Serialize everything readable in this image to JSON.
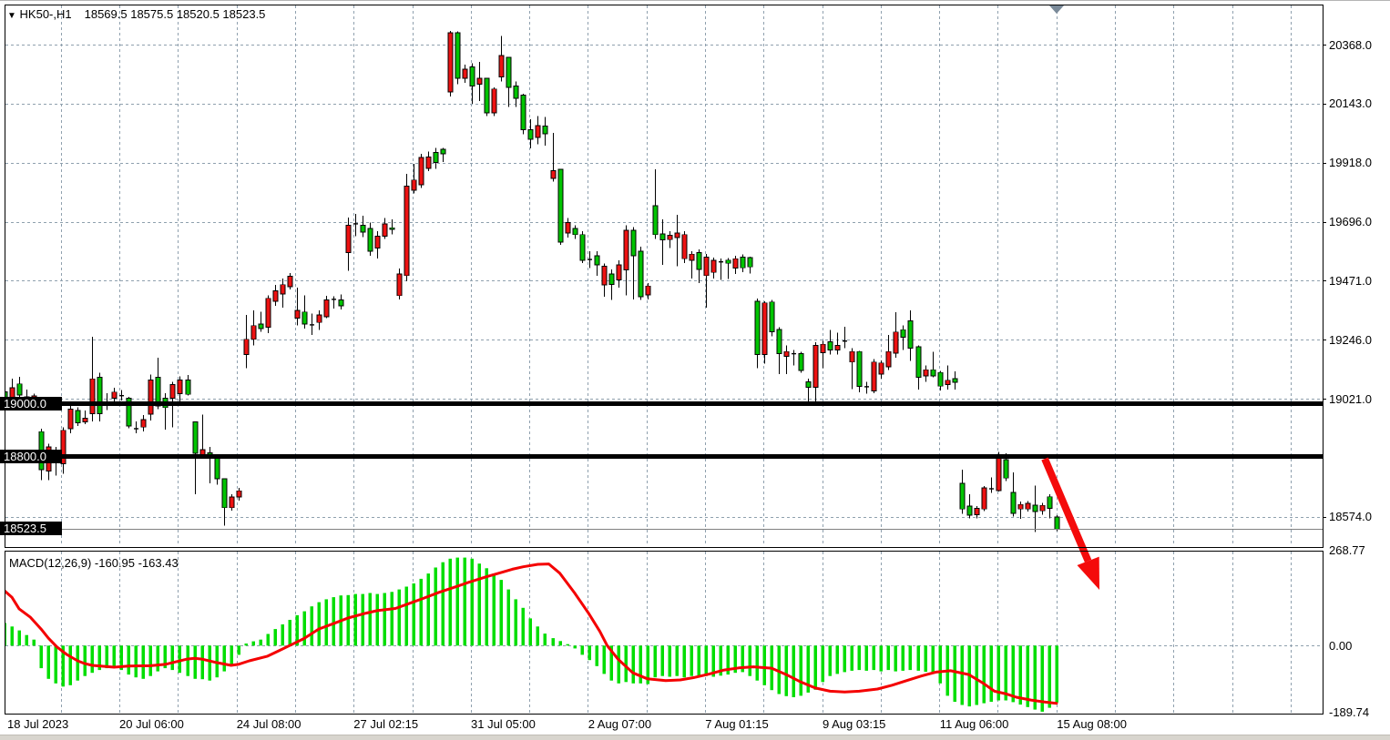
{
  "window": {
    "symbol": "HK50-,H1",
    "ohlc_quote": "18569.5 18575.5 18520.5 18523.5"
  },
  "indicator_label": "MACD(12,26,9) -160.95 -163.43",
  "price_axis": {
    "grid_labels": [
      {
        "text": "20368.0",
        "price": 20368
      },
      {
        "text": "20143.0",
        "price": 20143
      },
      {
        "text": "19918.0",
        "price": 19918
      },
      {
        "text": "19696.0",
        "price": 19693
      },
      {
        "text": "19471.0",
        "price": 19468
      },
      {
        "text": "19246.0",
        "price": 19243
      },
      {
        "text": "19021.0",
        "price": 19018
      },
      {
        "text": "18574.0",
        "price": 18568
      }
    ],
    "badges": [
      {
        "text": "19000.0",
        "price": 19000
      },
      {
        "text": "18800.0",
        "price": 18800
      },
      {
        "text": "18523.5",
        "price": 18523.5
      }
    ]
  },
  "macd_axis": {
    "labels": [
      {
        "text": "268.77",
        "value": 268.77
      },
      {
        "text": "0.00",
        "value": 0
      },
      {
        "text": "-189.74",
        "value": -189.74
      }
    ]
  },
  "time_axis": {
    "labels": [
      "18 Jul 2023",
      "20 Jul 06:00",
      "24 Jul 08:00",
      "27 Jul 02:15",
      "31 Jul 05:00",
      "2 Aug 07:00",
      "7 Aug 01:15",
      "9 Aug 03:15",
      "11 Aug 06:00",
      "15 Aug 08:00"
    ]
  },
  "chart_data": {
    "type": "candlestick",
    "title": "HK50-,H1",
    "ylim": [
      18453,
      20520
    ],
    "grid": true,
    "levels": [
      {
        "price": 19000
      },
      {
        "price": 18800
      }
    ],
    "current_price": 18523.5,
    "candles_ohlc": [
      [
        18995,
        19050,
        18985,
        19045
      ],
      [
        19060,
        19095,
        18990,
        19010
      ],
      [
        19032,
        19102,
        19013,
        19075
      ],
      [
        19024,
        19053,
        18993,
        19026
      ],
      [
        19029,
        19037,
        19006,
        19014
      ],
      [
        18748,
        18904,
        18708,
        18893
      ],
      [
        18835,
        18846,
        18708,
        18743
      ],
      [
        18779,
        18835,
        18726,
        18806
      ],
      [
        18898,
        18910,
        18732,
        18771
      ],
      [
        18979,
        18991,
        18887,
        18904
      ],
      [
        18927,
        18985,
        18915,
        18973
      ],
      [
        18944,
        18973,
        18921,
        18930
      ],
      [
        19094,
        19255,
        18932,
        18961
      ],
      [
        18961,
        19117,
        18932,
        19100
      ],
      [
        18998,
        19040,
        18975,
        19004
      ],
      [
        19044,
        19061,
        18998,
        19021
      ],
      [
        19030,
        19051,
        19012,
        19030
      ],
      [
        18915,
        19025,
        18905,
        19020
      ],
      [
        18904,
        18932,
        18886,
        18904
      ],
      [
        18939,
        18956,
        18893,
        18910
      ],
      [
        19090,
        19110,
        18935,
        18960
      ],
      [
        18990,
        19175,
        18978,
        19100
      ],
      [
        18985,
        19040,
        18900,
        19020
      ],
      [
        19072,
        19083,
        18910,
        19021
      ],
      [
        19090,
        19103,
        19003,
        19038
      ],
      [
        19035,
        19108,
        19030,
        19090
      ],
      [
        18810,
        18932,
        18655,
        18930
      ],
      [
        18824,
        18957,
        18800,
        18806
      ],
      [
        18790,
        18835,
        18696,
        18812
      ],
      [
        18713,
        18800,
        18690,
        18794
      ],
      [
        18603,
        18715,
        18534,
        18713
      ],
      [
        18644,
        18655,
        18592,
        18603
      ],
      [
        18667,
        18678,
        18630,
        18644
      ],
      [
        19245,
        19338,
        19135,
        19187
      ],
      [
        19297,
        19355,
        19222,
        19245
      ],
      [
        19286,
        19349,
        19274,
        19303
      ],
      [
        19401,
        19413,
        19268,
        19291
      ],
      [
        19430,
        19453,
        19372,
        19390
      ],
      [
        19453,
        19476,
        19366,
        19418
      ],
      [
        19485,
        19497,
        19434,
        19445
      ],
      [
        19355,
        19442,
        19297,
        19326
      ],
      [
        19303,
        19412,
        19286,
        19349
      ],
      [
        19300,
        19343,
        19262,
        19300
      ],
      [
        19338,
        19355,
        19280,
        19309
      ],
      [
        19395,
        19410,
        19325,
        19331
      ],
      [
        19397,
        19408,
        19362,
        19397
      ],
      [
        19372,
        19415,
        19358,
        19395
      ],
      [
        19679,
        19709,
        19506,
        19575
      ],
      [
        19685,
        19722,
        19638,
        19685
      ],
      [
        19654,
        19715,
        19634,
        19679
      ],
      [
        19581,
        19690,
        19563,
        19667
      ],
      [
        19638,
        19656,
        19552,
        19592
      ],
      [
        19685,
        19708,
        19627,
        19638
      ],
      [
        19665,
        19702,
        19644,
        19670
      ],
      [
        19494,
        19514,
        19397,
        19411
      ],
      [
        19829,
        19875,
        19466,
        19488
      ],
      [
        19852,
        19914,
        19800,
        19812
      ],
      [
        19938,
        19952,
        19822,
        19834
      ],
      [
        19940,
        19961,
        19886,
        19896
      ],
      [
        19918,
        19974,
        19894,
        19957
      ],
      [
        19952,
        19975,
        19921,
        19969
      ],
      [
        20413,
        20420,
        20170,
        20188
      ],
      [
        20240,
        20419,
        20217,
        20413
      ],
      [
        20274,
        20291,
        20222,
        20240
      ],
      [
        20211,
        20297,
        20142,
        20283
      ],
      [
        20240,
        20302,
        20153,
        20217
      ],
      [
        20107,
        20242,
        20095,
        20240
      ],
      [
        20199,
        20205,
        20095,
        20107
      ],
      [
        20326,
        20401,
        20228,
        20245
      ],
      [
        20205,
        20322,
        20130,
        20320
      ],
      [
        20164,
        20228,
        20130,
        20211
      ],
      [
        20043,
        20180,
        20026,
        20176
      ],
      [
        20008,
        20084,
        19973,
        20043
      ],
      [
        20060,
        20095,
        19989,
        20014
      ],
      [
        20029,
        20092,
        19983,
        20057
      ],
      [
        19887,
        20031,
        19846,
        19858
      ],
      [
        19615,
        19895,
        19605,
        19893
      ],
      [
        19690,
        19708,
        19633,
        19650
      ],
      [
        19644,
        19679,
        19627,
        19667
      ],
      [
        19546,
        19656,
        19535,
        19644
      ],
      [
        19549,
        19580,
        19516,
        19549
      ],
      [
        19529,
        19580,
        19487,
        19563
      ],
      [
        19523,
        19534,
        19407,
        19453
      ],
      [
        19453,
        19511,
        19395,
        19494
      ],
      [
        19528,
        19546,
        19442,
        19471
      ],
      [
        19661,
        19679,
        19412,
        19509
      ],
      [
        19563,
        19673,
        19397,
        19661
      ],
      [
        19407,
        19598,
        19395,
        19581
      ],
      [
        19448,
        19459,
        19397,
        19414
      ],
      [
        19644,
        19893,
        19627,
        19754
      ],
      [
        19624,
        19702,
        19528,
        19646
      ],
      [
        19641,
        19656,
        19592,
        19625
      ],
      [
        19650,
        19719,
        19523,
        19633
      ],
      [
        19644,
        19656,
        19535,
        19552
      ],
      [
        19569,
        19581,
        19477,
        19546
      ],
      [
        19511,
        19587,
        19459,
        19575
      ],
      [
        19558,
        19570,
        19365,
        19488
      ],
      [
        19546,
        19557,
        19477,
        19500
      ],
      [
        19540,
        19552,
        19471,
        19540
      ],
      [
        19535,
        19554,
        19475,
        19547
      ],
      [
        19552,
        19563,
        19494,
        19517
      ],
      [
        19517,
        19569,
        19500,
        19558
      ],
      [
        19521,
        19560,
        19496,
        19556
      ],
      [
        19187,
        19401,
        19135,
        19390
      ],
      [
        19384,
        19390,
        19152,
        19187
      ],
      [
        19274,
        19395,
        19257,
        19387
      ],
      [
        19190,
        19291,
        19112,
        19282
      ],
      [
        19198,
        19221,
        19112,
        19180
      ],
      [
        19190,
        19204,
        19146,
        19190
      ],
      [
        19126,
        19198,
        19118,
        19190
      ],
      [
        19062,
        19095,
        18997,
        19083
      ],
      [
        19222,
        19234,
        18995,
        19062
      ],
      [
        19226,
        19238,
        19135,
        19194
      ],
      [
        19204,
        19281,
        19187,
        19235
      ],
      [
        19222,
        19270,
        19187,
        19204
      ],
      [
        19238,
        19292,
        19211,
        19238
      ],
      [
        19198,
        19211,
        19055,
        19158
      ],
      [
        19066,
        19200,
        19043,
        19198
      ],
      [
        19064,
        19083,
        19037,
        19064
      ],
      [
        19158,
        19170,
        19040,
        19048
      ],
      [
        19155,
        19165,
        19095,
        19112
      ],
      [
        19198,
        19262,
        19128,
        19140
      ],
      [
        19273,
        19348,
        19175,
        19192
      ],
      [
        19252,
        19297,
        19205,
        19281
      ],
      [
        19211,
        19355,
        19163,
        19315
      ],
      [
        19100,
        19222,
        19054,
        19216
      ],
      [
        19129,
        19146,
        19083,
        19106
      ],
      [
        19106,
        19198,
        19100,
        19129
      ],
      [
        19066,
        19125,
        19049,
        19118
      ],
      [
        19089,
        19146,
        19054,
        19072
      ],
      [
        19081,
        19123,
        19054,
        19095
      ],
      [
        18598,
        18748,
        18580,
        18696
      ],
      [
        18574,
        18655,
        18562,
        18609
      ],
      [
        18601,
        18609,
        18562,
        18576
      ],
      [
        18679,
        18685,
        18590,
        18598
      ],
      [
        18675,
        18718,
        18660,
        18675
      ],
      [
        18795,
        18815,
        18665,
        18668
      ],
      [
        18716,
        18811,
        18705,
        18786
      ],
      [
        18581,
        18737,
        18569,
        18661
      ],
      [
        18615,
        18626,
        18560,
        18598
      ],
      [
        18620,
        18629,
        18588,
        18598
      ],
      [
        18588,
        18688,
        18511,
        18613
      ],
      [
        18612,
        18622,
        18577,
        18591
      ],
      [
        18601,
        18655,
        18562,
        18645
      ],
      [
        18522,
        18575,
        18513,
        18568
      ]
    ],
    "macd": {
      "params": "12,26,9",
      "current_macd": -160.95,
      "current_signal": -163.43,
      "scale_max": 268.77,
      "scale_min": -189.74,
      "histogram": [
        64,
        54,
        43,
        30,
        17,
        -64,
        -94,
        -107,
        -116,
        -112,
        -99,
        -86,
        -77,
        -69,
        -64,
        -60,
        -69,
        -82,
        -90,
        -94,
        -86,
        -73,
        -64,
        -69,
        -77,
        -86,
        -94,
        -95,
        -99,
        -90,
        -73,
        -52,
        -26,
        6,
        12,
        17,
        33,
        47,
        60,
        73,
        86,
        97,
        111,
        123,
        131,
        137,
        142,
        143,
        146,
        146,
        149,
        146,
        149,
        152,
        159,
        167,
        176,
        189,
        204,
        221,
        236,
        246,
        249,
        249,
        246,
        232,
        219,
        204,
        186,
        159,
        131,
        107,
        77,
        54,
        34,
        21,
        13,
        4,
        -8,
        -26,
        -41,
        -58,
        -80,
        -99,
        -107,
        -103,
        -107,
        -107,
        -109,
        -90,
        -86,
        -88,
        -86,
        -90,
        -86,
        -88,
        -86,
        -88,
        -85,
        -82,
        -77,
        -75,
        -86,
        -99,
        -112,
        -126,
        -137,
        -143,
        -146,
        -142,
        -133,
        -125,
        -103,
        -86,
        -80,
        -75,
        -71,
        -69,
        -71,
        -69,
        -73,
        -69,
        -73,
        -71,
        -69,
        -71,
        -74,
        -77,
        -107,
        -142,
        -159,
        -168,
        -172,
        -168,
        -163,
        -159,
        -155,
        -155,
        -160,
        -167,
        -174,
        -181,
        -187,
        -176,
        -161
      ],
      "signal_points": [
        [
          0,
          155
        ],
        [
          1,
          137
        ],
        [
          2,
          104
        ],
        [
          3.5,
          81
        ],
        [
          5,
          47
        ],
        [
          6,
          21
        ],
        [
          7.2,
          -4
        ],
        [
          8.5,
          -25
        ],
        [
          10,
          -43
        ],
        [
          11,
          -51
        ],
        [
          12,
          -56
        ],
        [
          15,
          -61
        ],
        [
          17,
          -58
        ],
        [
          20,
          -57
        ],
        [
          22,
          -53
        ],
        [
          25,
          -38
        ],
        [
          26,
          -36
        ],
        [
          27,
          -38
        ],
        [
          29,
          -48
        ],
        [
          31,
          -56
        ],
        [
          32,
          -53
        ],
        [
          33.5,
          -43
        ],
        [
          36,
          -30
        ],
        [
          37.5,
          -15
        ],
        [
          39,
          0
        ],
        [
          41,
          20
        ],
        [
          43,
          47
        ],
        [
          45,
          62
        ],
        [
          47,
          78
        ],
        [
          49.5,
          92
        ],
        [
          51,
          99
        ],
        [
          53.5,
          105
        ],
        [
          55.5,
          120
        ],
        [
          57.5,
          135
        ],
        [
          59.5,
          151
        ],
        [
          62,
          168
        ],
        [
          63.5,
          179
        ],
        [
          66,
          195
        ],
        [
          68,
          207
        ],
        [
          69.5,
          216
        ],
        [
          71,
          223
        ],
        [
          73,
          230
        ],
        [
          74.5,
          231
        ],
        [
          76,
          205
        ],
        [
          78,
          150
        ],
        [
          80,
          90
        ],
        [
          81.5,
          40
        ],
        [
          82.5,
          0
        ],
        [
          84,
          -39
        ],
        [
          86,
          -77
        ],
        [
          88,
          -94
        ],
        [
          90.5,
          -99
        ],
        [
          92.5,
          -97
        ],
        [
          94.5,
          -90
        ],
        [
          96.5,
          -80
        ],
        [
          98.5,
          -69
        ],
        [
          100.5,
          -63
        ],
        [
          102.5,
          -60
        ],
        [
          105,
          -64
        ],
        [
          107,
          -82
        ],
        [
          109,
          -103
        ],
        [
          111,
          -120
        ],
        [
          113,
          -129
        ],
        [
          115,
          -131
        ],
        [
          117,
          -129
        ],
        [
          119.5,
          -123
        ],
        [
          121.5,
          -112
        ],
        [
          123.5,
          -99
        ],
        [
          125.5,
          -86
        ],
        [
          127.5,
          -75
        ],
        [
          129.5,
          -71
        ],
        [
          132,
          -82
        ],
        [
          134,
          -107
        ],
        [
          135.5,
          -129
        ],
        [
          137,
          -136
        ],
        [
          138.5,
          -146
        ],
        [
          140.5,
          -154
        ],
        [
          142.5,
          -160
        ],
        [
          144,
          -163.4
        ]
      ]
    },
    "annotations": {
      "arrow": "large red down-right arrow",
      "top_marker": "gray triangle at last bar"
    }
  },
  "colors": {
    "bull": "#00C400",
    "bear": "#ED1212",
    "wick": "#000000",
    "doji": "#000000",
    "grid": "#8FA0AE",
    "level_line": "#000000",
    "current_price_line": "#808080",
    "macd_bar": "#00DE00",
    "signal_line": "#F40000",
    "arrow": "#F40B0B",
    "top_marker": "#7A8A99",
    "badge_bg": "#000000",
    "badge_text": "#FFFFFF"
  }
}
